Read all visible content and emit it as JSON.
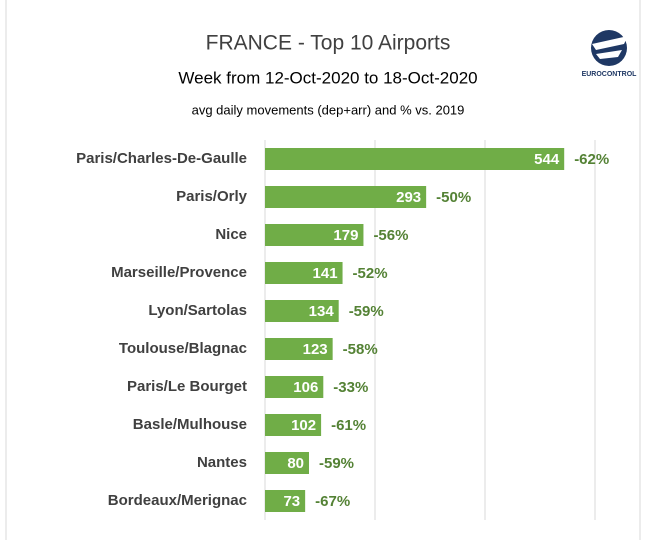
{
  "chart_data": {
    "type": "barh",
    "title": "FRANCE - Top 10 Airports",
    "subtitle": "Week from 12-Oct-2020 to 18-Oct-2020",
    "note": "avg daily movements (dep+arr) and % vs. 2019",
    "logo_text": "EUROCONTROL",
    "categories": [
      "Paris/Charles-De-Gaulle",
      "Paris/Orly",
      "Nice",
      "Marseille/Provence",
      "Lyon/Sartolas",
      "Toulouse/Blagnac",
      "Paris/Le Bourget",
      "Basle/Mulhouse",
      "Nantes",
      "Bordeaux/Merignac"
    ],
    "values": [
      544,
      293,
      179,
      141,
      134,
      123,
      106,
      102,
      80,
      73
    ],
    "color": "#70ad47",
    "change": {
      "values": [
        -62,
        -50,
        -56,
        -52,
        -59,
        -58,
        -33,
        -61,
        -59,
        -67
      ],
      "value_labels": [
        "-62%",
        "-50%",
        "-56%",
        "-52%",
        "-59%",
        "-58%",
        "-33%",
        "-61%",
        "-59%",
        "-67%"
      ],
      "color": "#548235"
    },
    "xlim": [
      0,
      600
    ],
    "xticks": [
      0,
      200,
      400,
      600
    ],
    "grid": true
  }
}
